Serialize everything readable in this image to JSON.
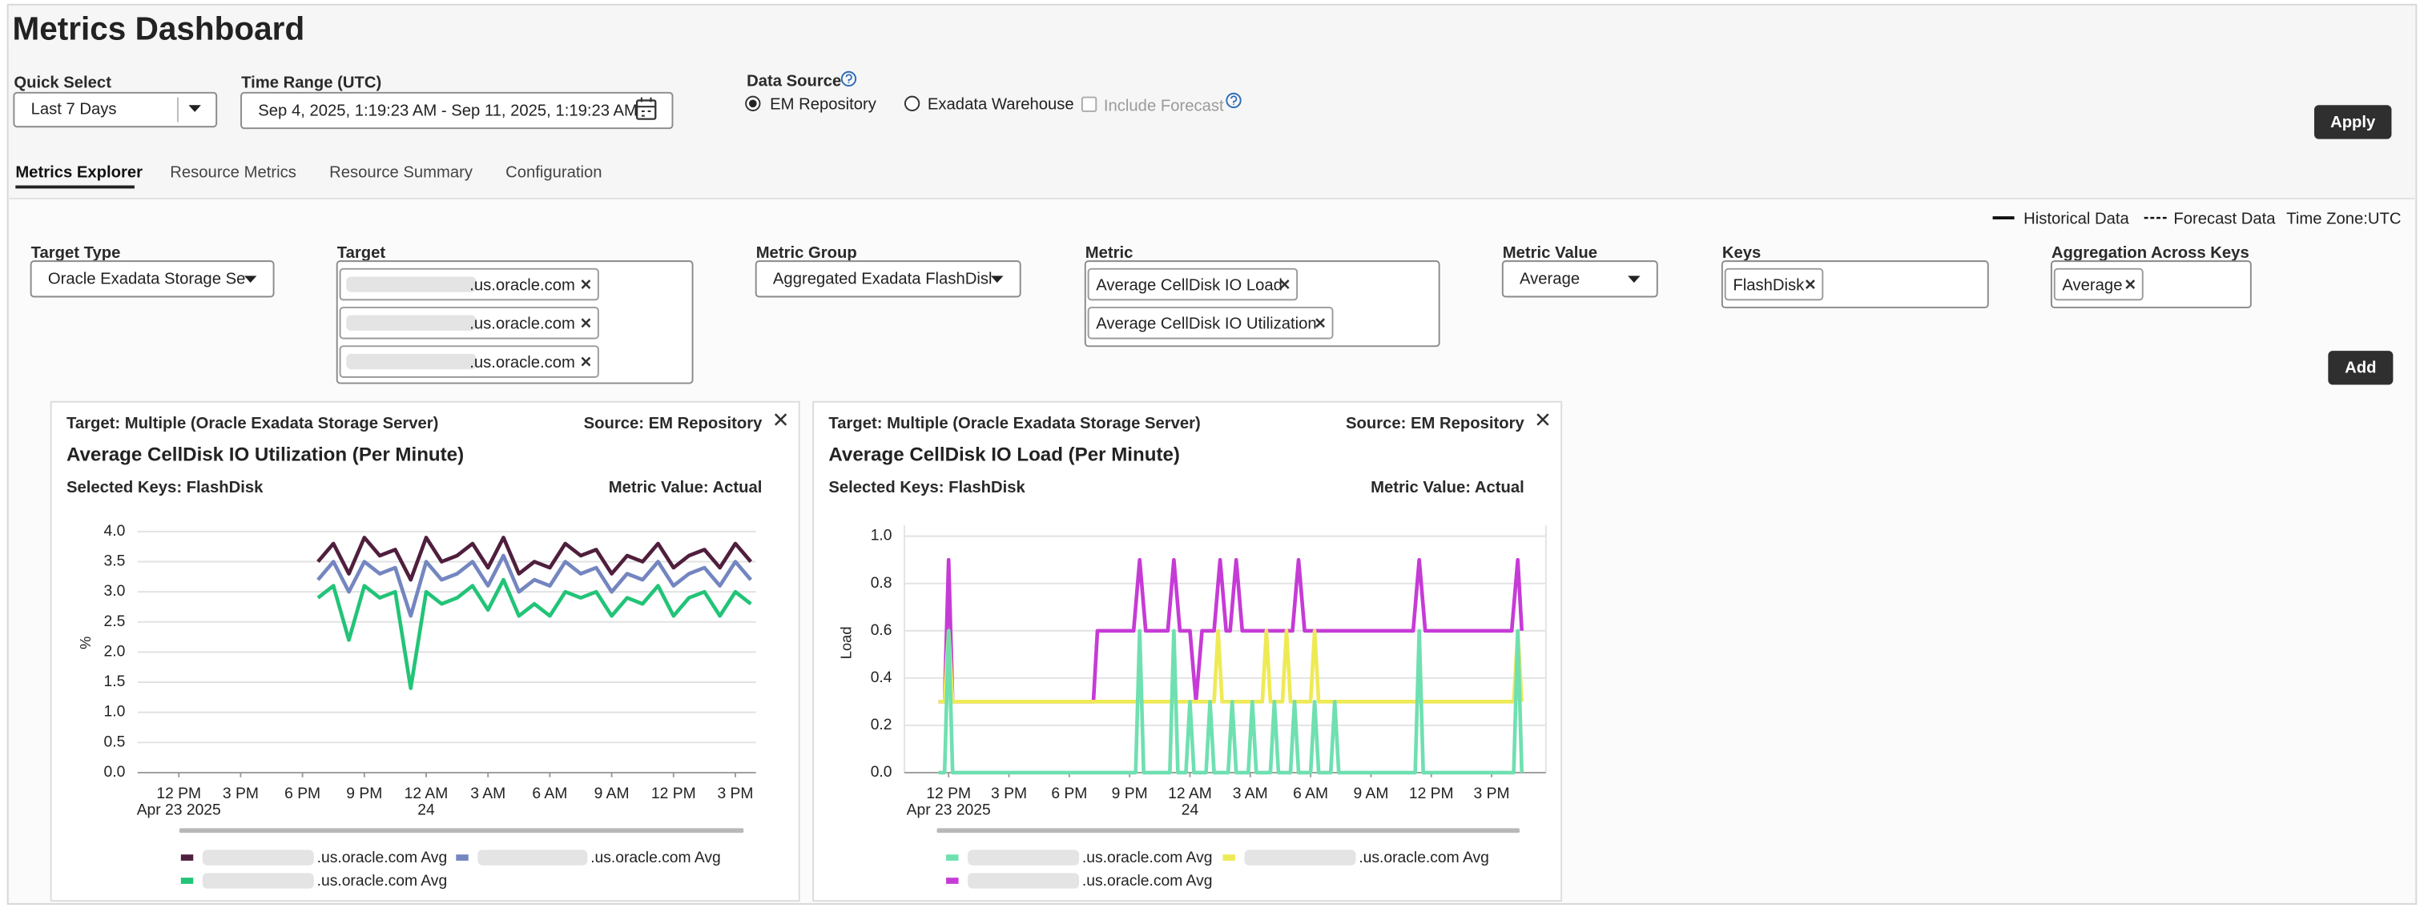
{
  "header": {
    "title": "Metrics Dashboard"
  },
  "filters": {
    "quick_select": {
      "label": "Quick Select",
      "value": "Last 7 Days"
    },
    "time_range": {
      "label": "Time Range (UTC)",
      "value": "Sep 4, 2025, 1:19:23 AM - Sep 11, 2025, 1:19:23 AM"
    },
    "data_source": {
      "label": "Data Source",
      "options": [
        "EM Repository",
        "Exadata Warehouse"
      ],
      "selected": 0,
      "include_forecast": "Include Forecast"
    },
    "apply": "Apply"
  },
  "tabs": {
    "items": [
      "Metrics Explorer",
      "Resource Metrics",
      "Resource Summary",
      "Configuration"
    ],
    "active": 0
  },
  "legend": {
    "historical": "Historical Data",
    "forecast": "Forecast Data",
    "time_zone": "Time Zone:UTC"
  },
  "fields": [
    {
      "label": "Target Type",
      "value": "Oracle Exadata Storage Se"
    },
    {
      "label": "Target",
      "chips": [
        ".us.oracle.com",
        ".us.oracle.com",
        ".us.oracle.com"
      ]
    },
    {
      "label": "Metric Group",
      "value": "Aggregated Exadata FlashDisl"
    },
    {
      "label": "Metric",
      "chips": [
        "Average CellDisk IO Load",
        "Average CellDisk IO Utilization"
      ]
    },
    {
      "label": "Metric Value",
      "value": "Average"
    },
    {
      "label": "Keys",
      "chips": [
        "FlashDisk"
      ]
    },
    {
      "label": "Aggregation Across Keys",
      "chips": [
        "Average"
      ]
    }
  ],
  "add": "Add",
  "chart_data": [
    {
      "type": "line",
      "target": "Target: Multiple (Oracle Exadata Storage Server)",
      "source": "Source: EM Repository",
      "title": "Average CellDisk IO Utilization (Per Minute)",
      "selected_keys": "Selected Keys: FlashDisk",
      "metric_value": "Metric Value: Actual",
      "ylabel": "%",
      "xlim": [
        10,
        40
      ],
      "ylim": [
        0,
        4
      ],
      "xticks": [
        {
          "value": 12,
          "label": "12 PM",
          "sublabel": "Apr 23 2025"
        },
        {
          "value": 15,
          "label": "3 PM"
        },
        {
          "value": 18,
          "label": "6 PM"
        },
        {
          "value": 21,
          "label": "9 PM"
        },
        {
          "value": 24,
          "label": "12 AM",
          "sublabel": "24"
        },
        {
          "value": 27,
          "label": "3 AM"
        },
        {
          "value": 30,
          "label": "6 AM"
        },
        {
          "value": 33,
          "label": "9 AM"
        },
        {
          "value": 36,
          "label": "12 PM"
        },
        {
          "value": 39,
          "label": "3 PM"
        }
      ],
      "yticks": [
        {
          "value": 0,
          "label": "0.0"
        },
        0.5,
        {
          "value": 1,
          "label": "1.0"
        },
        1.5,
        {
          "value": 2,
          "label": "2.0"
        },
        2.5,
        {
          "value": 3,
          "label": "3.0"
        },
        3.5,
        {
          "value": 4,
          "label": "4.0"
        }
      ],
      "grid": true,
      "x": [
        18.75,
        19.5,
        20.25,
        21,
        21.75,
        22.5,
        23.25,
        24,
        24.75,
        25.5,
        26.25,
        27,
        27.75,
        28.5,
        29.25,
        30,
        30.75,
        31.5,
        32.25,
        33,
        33.75,
        34.5,
        35.25,
        36,
        36.75,
        37.5,
        38.25,
        39,
        39.75
      ],
      "series": [
        {
          "name": ".us.oracle.com Avg",
          "color": "#4f1f3d",
          "values": [
            3.5,
            3.8,
            3.3,
            3.9,
            3.6,
            3.7,
            3.2,
            3.9,
            3.5,
            3.6,
            3.8,
            3.4,
            3.9,
            3.3,
            3.5,
            3.4,
            3.8,
            3.6,
            3.7,
            3.3,
            3.6,
            3.5,
            3.8,
            3.4,
            3.6,
            3.7,
            3.4,
            3.8,
            3.5
          ]
        },
        {
          "name": ".us.oracle.com Avg",
          "color": "#7486c0",
          "values": [
            3.2,
            3.5,
            3.0,
            3.5,
            3.3,
            3.4,
            2.6,
            3.5,
            3.2,
            3.3,
            3.5,
            3.1,
            3.6,
            3.0,
            3.2,
            3.1,
            3.5,
            3.3,
            3.4,
            3.0,
            3.3,
            3.2,
            3.5,
            3.1,
            3.3,
            3.4,
            3.1,
            3.5,
            3.2
          ]
        },
        {
          "name": ".us.oracle.com Avg",
          "color": "#22c477",
          "values": [
            2.9,
            3.1,
            2.2,
            3.1,
            2.9,
            3.0,
            1.4,
            3.0,
            2.8,
            2.9,
            3.1,
            2.7,
            3.2,
            2.6,
            2.8,
            2.6,
            3.0,
            2.9,
            3.0,
            2.6,
            2.9,
            2.8,
            3.1,
            2.6,
            2.9,
            3.0,
            2.6,
            3.0,
            2.8
          ]
        }
      ]
    },
    {
      "type": "line",
      "target": "Target: Multiple (Oracle Exadata Storage Server)",
      "source": "Source: EM Repository",
      "title": "Average CellDisk IO Load (Per Minute)",
      "selected_keys": "Selected Keys: FlashDisk",
      "metric_value": "Metric Value: Actual",
      "ylabel": "Load",
      "xlim": [
        9.8,
        41.7
      ],
      "ylim": [
        0,
        1
      ],
      "xticks": [
        {
          "value": 12,
          "label": "12 PM",
          "sublabel": "Apr 23 2025"
        },
        {
          "value": 15,
          "label": "3 PM"
        },
        {
          "value": 18,
          "label": "6 PM"
        },
        {
          "value": 21,
          "label": "9 PM"
        },
        {
          "value": 24,
          "label": "12 AM",
          "sublabel": "24"
        },
        {
          "value": 27,
          "label": "3 AM"
        },
        {
          "value": 30,
          "label": "6 AM"
        },
        {
          "value": 33,
          "label": "9 AM"
        },
        {
          "value": 36,
          "label": "12 PM"
        },
        {
          "value": 39,
          "label": "3 PM"
        }
      ],
      "yticks": [
        {
          "value": 0,
          "label": "0.0"
        },
        0.2,
        0.4,
        0.6,
        0.8,
        {
          "value": 1,
          "label": "1.0"
        }
      ],
      "grid": true,
      "series": [
        {
          "name": ".us.oracle.com Avg",
          "color": "#6fe0b0",
          "x": [
            11.5,
            11.8,
            12.0,
            12.2,
            21.3,
            21.5,
            21.7,
            23.0,
            23.2,
            23.4,
            23.8,
            24.0,
            24.2,
            24.8,
            25.0,
            25.2,
            25.9,
            26.1,
            26.3,
            26.9,
            27.1,
            27.3,
            28.0,
            28.2,
            28.4,
            29.0,
            29.2,
            29.4,
            30.0,
            30.2,
            30.4,
            31.0,
            31.2,
            31.4,
            35.2,
            35.4,
            35.6,
            40.1,
            40.3,
            40.5
          ],
          "values": [
            0,
            0,
            0.6,
            0,
            0,
            0.6,
            0,
            0,
            0.6,
            0,
            0,
            0.3,
            0,
            0,
            0.3,
            0,
            0,
            0.3,
            0,
            0,
            0.3,
            0,
            0,
            0.3,
            0,
            0,
            0.3,
            0,
            0,
            0.3,
            0,
            0,
            0.3,
            0,
            0,
            0.6,
            0,
            0,
            0.6,
            0
          ]
        },
        {
          "name": ".us.oracle.com Avg",
          "color": "#eeea55",
          "x": [
            11.5,
            11.8,
            12.0,
            12.2,
            25.2,
            25.4,
            25.6,
            27.6,
            27.8,
            28.0,
            28.6,
            28.8,
            29.0,
            30.0,
            30.2,
            30.4,
            40.1,
            40.3,
            40.5
          ],
          "values": [
            0.3,
            0.3,
            0.6,
            0.3,
            0.3,
            0.6,
            0.3,
            0.3,
            0.6,
            0.3,
            0.3,
            0.6,
            0.3,
            0.3,
            0.6,
            0.3,
            0.3,
            0.6,
            0.3
          ]
        },
        {
          "name": ".us.oracle.com Avg",
          "color": "#c63bd6",
          "x": [
            11.5,
            11.8,
            12.0,
            12.2,
            19.2,
            19.4,
            21.2,
            21.5,
            21.8,
            22.9,
            23.2,
            23.5,
            24.0,
            24.3,
            24.6,
            25.2,
            25.5,
            25.8,
            26.0,
            26.3,
            26.6,
            29.1,
            29.4,
            29.7,
            35.1,
            35.4,
            35.7,
            40.0,
            40.3,
            40.5
          ],
          "values": [
            0.3,
            0.3,
            0.9,
            0.3,
            0.3,
            0.6,
            0.6,
            0.9,
            0.6,
            0.6,
            0.9,
            0.6,
            0.6,
            0.3,
            0.6,
            0.6,
            0.9,
            0.6,
            0.6,
            0.9,
            0.6,
            0.6,
            0.9,
            0.6,
            0.6,
            0.9,
            0.6,
            0.6,
            0.9,
            0.6
          ]
        }
      ]
    }
  ]
}
